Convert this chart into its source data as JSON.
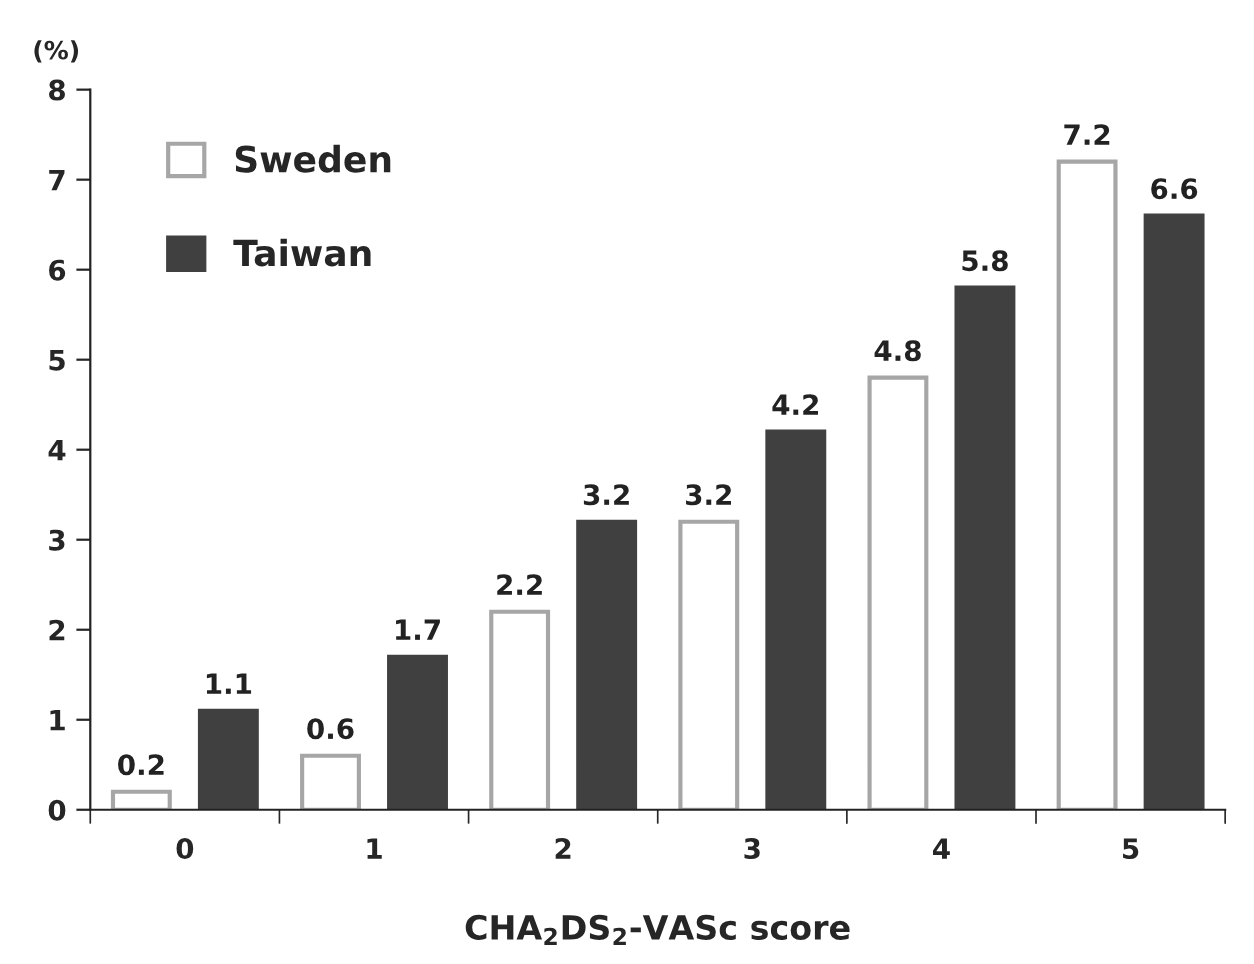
{
  "chart_data": {
    "type": "bar",
    "categories": [
      "0",
      "1",
      "2",
      "3",
      "4",
      "5"
    ],
    "series": [
      {
        "name": "Sweden",
        "color": "#ffffff",
        "values": [
          0.2,
          0.6,
          2.2,
          3.2,
          4.8,
          7.2
        ]
      },
      {
        "name": "Taiwan",
        "color": "#404040",
        "values": [
          1.1,
          1.7,
          3.2,
          4.2,
          5.8,
          6.6
        ]
      }
    ],
    "xlabel": "CHA$_{2}$DS$_{2}$-VASc score",
    "ylabel": "(%)",
    "ylim": [
      0,
      8
    ],
    "yticks": [
      0,
      1,
      2,
      3,
      4,
      5,
      6,
      7,
      8
    ],
    "data_labels": true,
    "legend": "top left",
    "grid": false
  }
}
